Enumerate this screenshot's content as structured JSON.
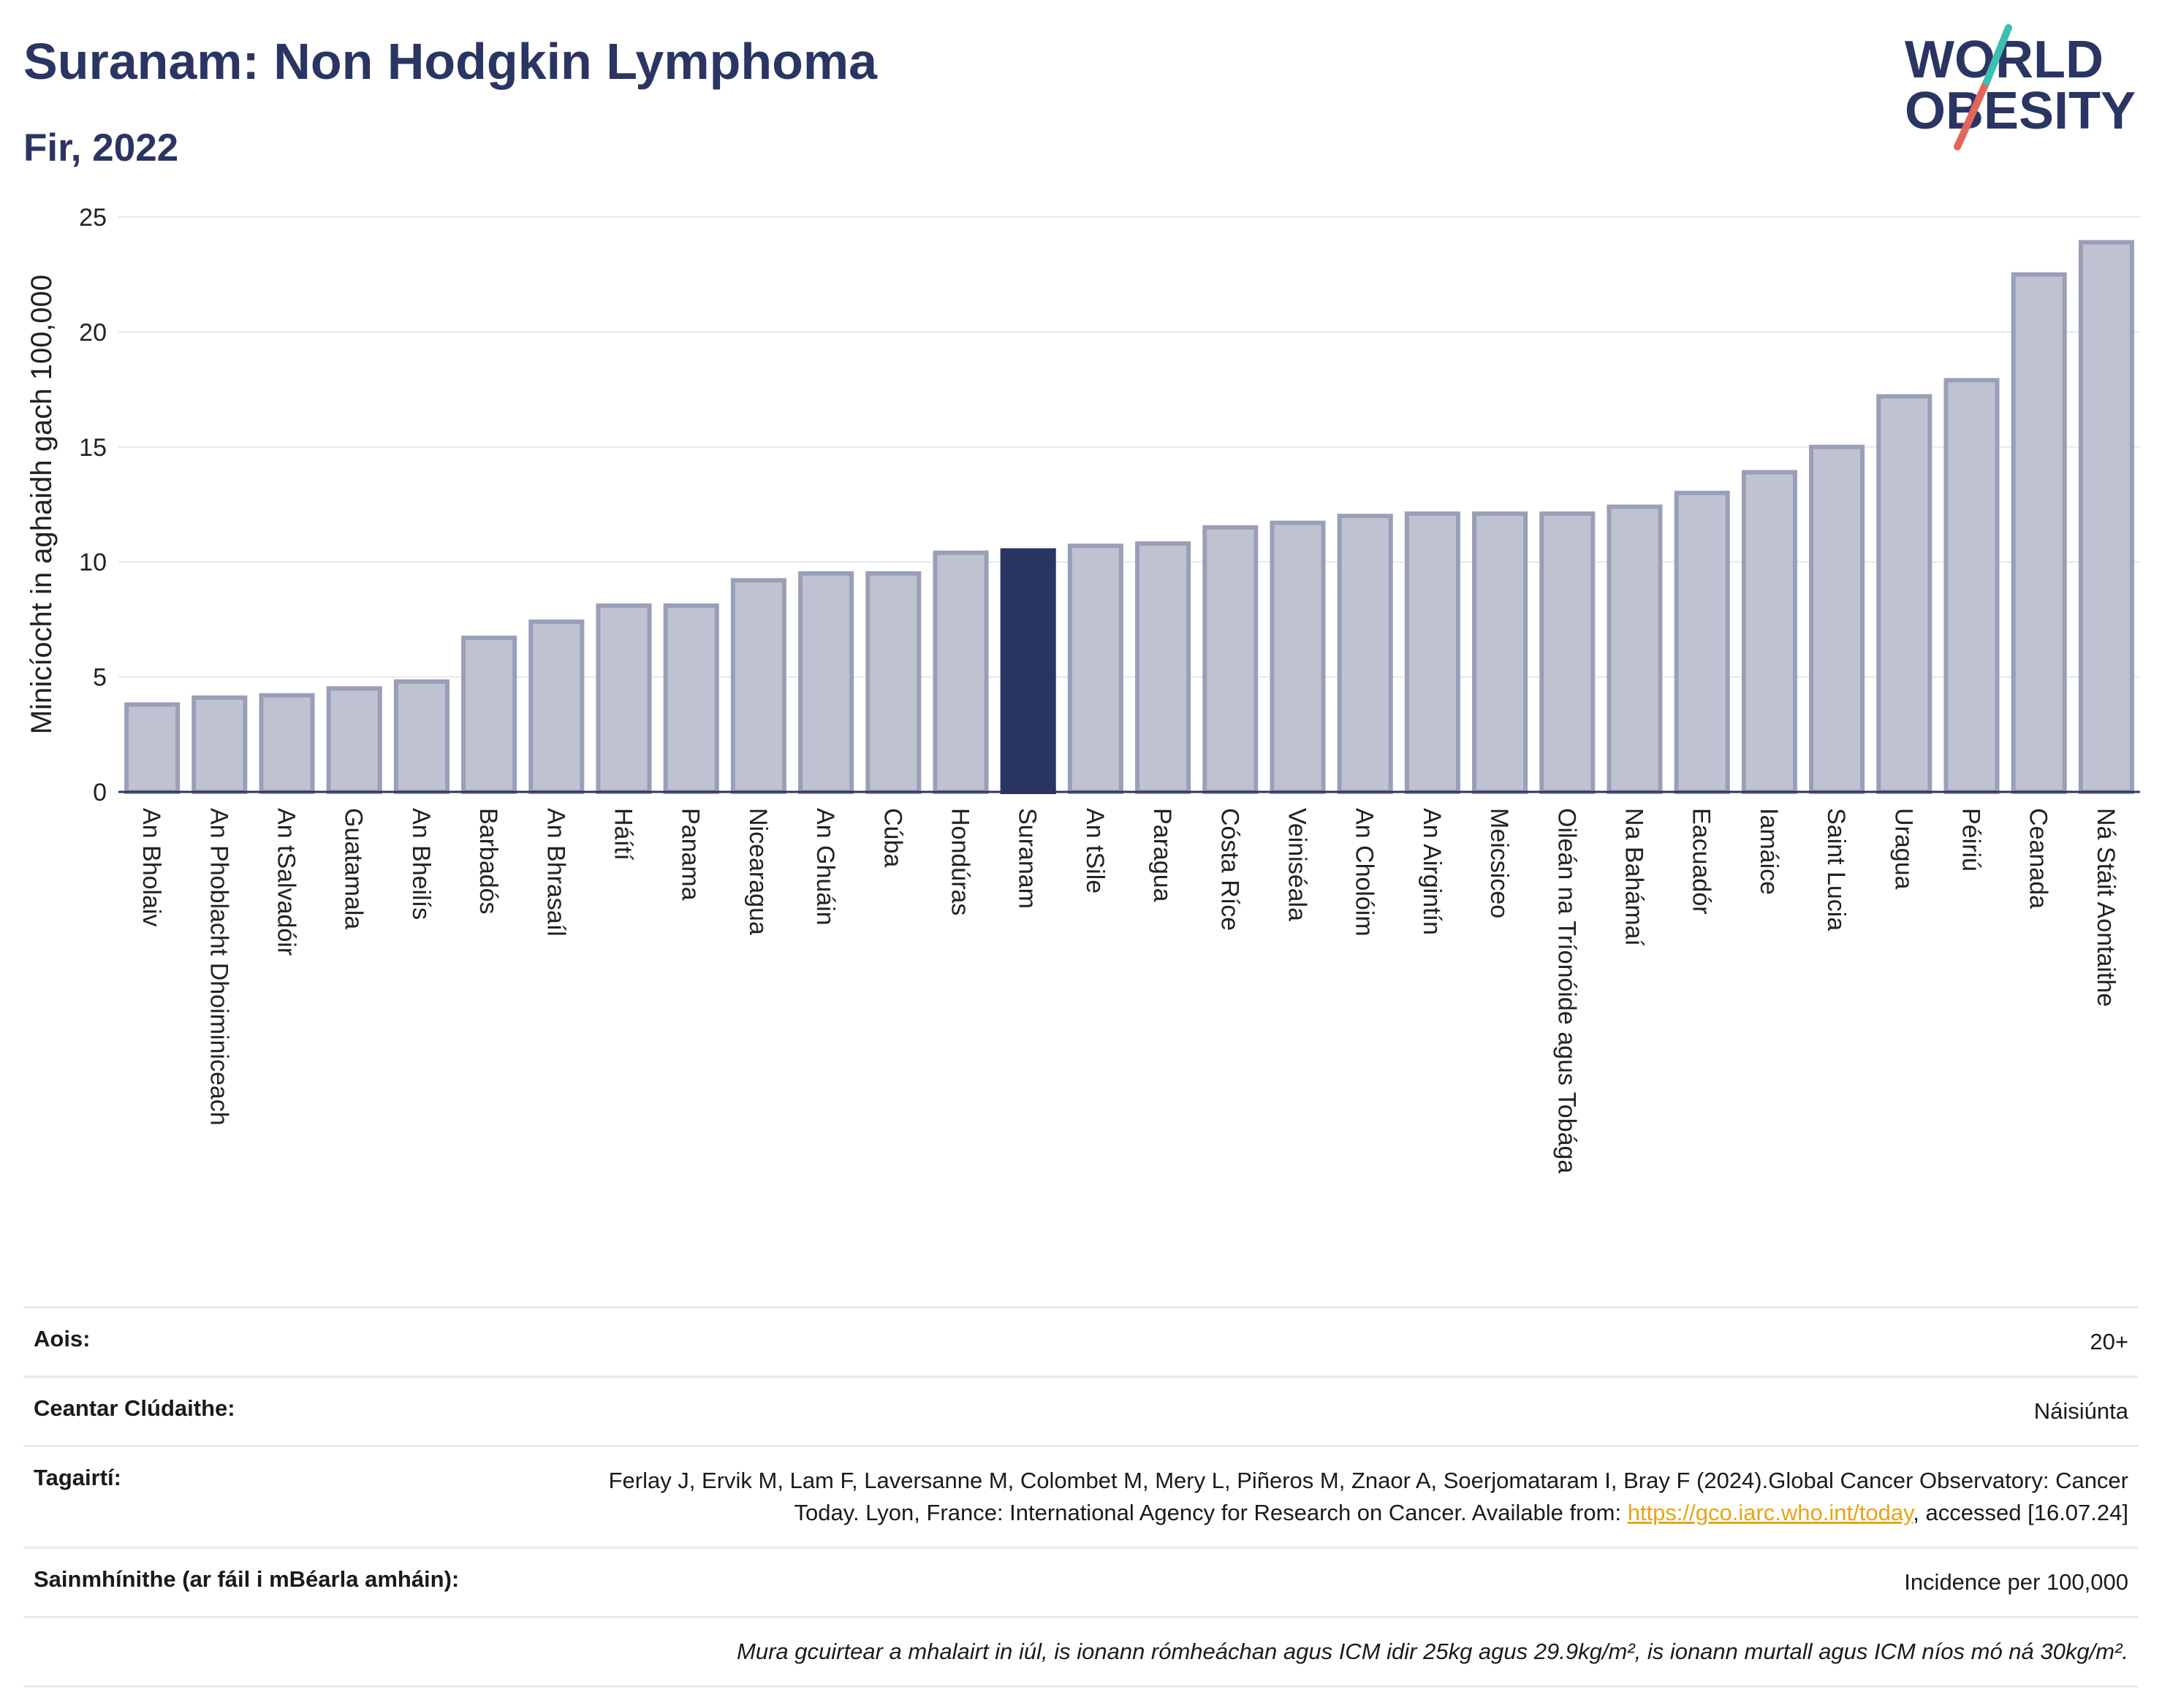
{
  "title": "Suranam: Non Hodgkin Lymphoma",
  "subtitle": "Fir, 2022",
  "logo": {
    "line1": "WORLD",
    "line2": "OBESITY"
  },
  "colors": {
    "highlight": "#2b3563",
    "bar": "#bfc2d0",
    "bar_stroke": "#9a9fb8",
    "title": "#2b3563",
    "accent_teal": "#3bbfb2",
    "accent_red": "#e2675a"
  },
  "chart_data": {
    "type": "bar",
    "ylabel": "Minicíocht in aghaidh gach 100,000",
    "ylim": [
      0,
      25
    ],
    "yticks": [
      0,
      5,
      10,
      15,
      20,
      25
    ],
    "grid": true,
    "highlight": "Suranam",
    "categories": [
      "An Bholaiv",
      "An Phoblacht Dhoiminiceach",
      "An tSalvadóir",
      "Guatamala",
      "An Bheilís",
      "Barbadós",
      "An Bhrasaíl",
      "Háítí",
      "Panama",
      "Nicearagua",
      "An Ghuáin",
      "Cúba",
      "Hondúras",
      "Suranam",
      "An tSile",
      "Paragua",
      "Cósta Ríce",
      "Veiniséala",
      "An Cholóim",
      "An Airgintín",
      "Meicsiceo",
      "Oileán na Tríonóide agus Tobága",
      "Na Bahámaí",
      "Eacuadór",
      "Iamáice",
      "Saint Lucia",
      "Uragua",
      "Péiriú",
      "Ceanada",
      "Ná Stáit Aontaithe"
    ],
    "values": [
      3.8,
      4.1,
      4.2,
      4.5,
      4.8,
      6.7,
      7.4,
      8.1,
      8.1,
      9.2,
      9.5,
      9.5,
      10.4,
      10.5,
      10.7,
      10.8,
      11.5,
      11.7,
      12.0,
      12.1,
      12.1,
      12.1,
      12.4,
      13.0,
      13.9,
      15.0,
      17.2,
      17.9,
      22.5,
      23.9
    ]
  },
  "info": {
    "age_label": "Aois:",
    "age_value": "20+",
    "coverage_label": "Ceantar Clúdaithe:",
    "coverage_value": "Náisiúnta",
    "refs_label": "Tagairtí:",
    "refs_text": "Ferlay J, Ervik M, Lam F, Laversanne M, Colombet M, Mery L, Piñeros M, Znaor A, Soerjomataram I, Bray F (2024).Global Cancer Observatory: Cancer Today. Lyon, France: International Agency for Research on Cancer. Available from:",
    "refs_link": "https://gco.iarc.who.int/today",
    "refs_tail": ", accessed [16.07.24]",
    "defs_label": "Sainmhínithe (ar fáil i mBéarla amháin):",
    "defs_value": "Incidence per 100,000",
    "note": "Mura gcuirtear a mhalairt in iúl, is ionann rómheáchan agus ICM idir 25kg agus 29.9kg/m², is ionann murtall agus ICM níos mó ná 30kg/m²."
  }
}
